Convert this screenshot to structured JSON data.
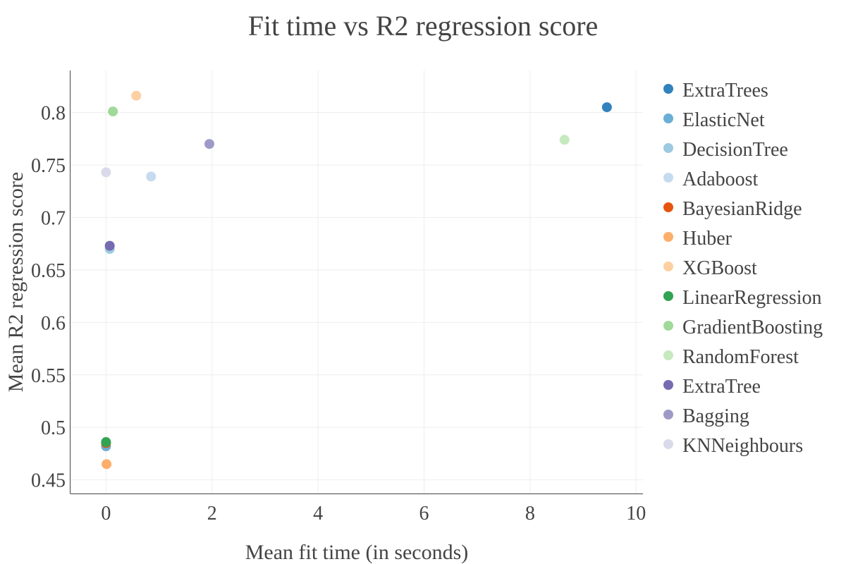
{
  "chart_data": {
    "type": "scatter",
    "title": "Fit time vs R2 regression score",
    "xlabel": "Mean fit time (in seconds)",
    "ylabel": "Mean R2 regression score",
    "xlim": [
      -0.67,
      10.13
    ],
    "ylim": [
      0.437,
      0.84
    ],
    "xticks": [
      0,
      2,
      4,
      6,
      8,
      10
    ],
    "xtick_labels": [
      "0",
      "2",
      "4",
      "6",
      "8",
      "10"
    ],
    "yticks": [
      0.45,
      0.5,
      0.55,
      0.6,
      0.65,
      0.7,
      0.75,
      0.8
    ],
    "ytick_labels": [
      "0.45",
      "0.5",
      "0.55",
      "0.6",
      "0.65",
      "0.7",
      "0.75",
      "0.8"
    ],
    "grid": true,
    "legend_position": "right",
    "series": [
      {
        "name": "ExtraTrees",
        "color": "#3182bd",
        "x": [
          9.45
        ],
        "y": [
          0.805
        ]
      },
      {
        "name": "ElasticNet",
        "color": "#6baed6",
        "x": [
          0.0
        ],
        "y": [
          0.482
        ]
      },
      {
        "name": "DecisionTree",
        "color": "#9ecae1",
        "x": [
          0.07
        ],
        "y": [
          0.67
        ]
      },
      {
        "name": "Adaboost",
        "color": "#c6dbef",
        "x": [
          0.85
        ],
        "y": [
          0.739
        ]
      },
      {
        "name": "BayesianRidge",
        "color": "#e6550d",
        "x": [
          0.0
        ],
        "y": [
          0.485
        ]
      },
      {
        "name": "Huber",
        "color": "#fdae6b",
        "x": [
          0.01
        ],
        "y": [
          0.465
        ]
      },
      {
        "name": "XGBoost",
        "color": "#fdd0a2",
        "x": [
          0.57
        ],
        "y": [
          0.816
        ]
      },
      {
        "name": "LinearRegression",
        "color": "#31a354",
        "x": [
          0.0
        ],
        "y": [
          0.486
        ]
      },
      {
        "name": "GradientBoosting",
        "color": "#a1d99b",
        "x": [
          0.13
        ],
        "y": [
          0.801
        ]
      },
      {
        "name": "RandomForest",
        "color": "#c7e9c0",
        "x": [
          8.65
        ],
        "y": [
          0.774
        ]
      },
      {
        "name": "ExtraTree",
        "color": "#756bb1",
        "x": [
          0.07
        ],
        "y": [
          0.673
        ]
      },
      {
        "name": "Bagging",
        "color": "#9e9ac8",
        "x": [
          1.95
        ],
        "y": [
          0.77
        ]
      },
      {
        "name": "KNNeighbours",
        "color": "#dadaeb",
        "x": [
          0.0
        ],
        "y": [
          0.743
        ]
      }
    ]
  }
}
